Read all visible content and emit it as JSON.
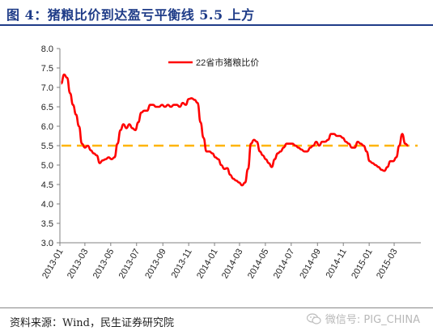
{
  "header": {
    "title": "图 4：猪粮比价到达盈亏平衡线 5.5 上方"
  },
  "footer": {
    "source": "资料来源：Wind，民生证券研究院"
  },
  "watermark": {
    "text": "微信号: PIG_CHINA",
    "icon": "wechat-icon"
  },
  "colors": {
    "series": "#ff0000",
    "threshold": "#ffb400",
    "title": "#1f3c88"
  },
  "chart_data": {
    "type": "line",
    "title": "",
    "xlabel": "",
    "ylabel": "",
    "ylim": [
      3.0,
      8.0
    ],
    "yticks": [
      "3.0",
      "3.5",
      "4.0",
      "4.5",
      "5.0",
      "5.5",
      "6.0",
      "6.5",
      "7.0",
      "7.5",
      "8.0"
    ],
    "xticks": [
      "2013-01",
      "2013-03",
      "2013-05",
      "2013-07",
      "2013-09",
      "2013-11",
      "2014-01",
      "2014-03",
      "2014-05",
      "2014-07",
      "2014-09",
      "2014-11",
      "2015-01",
      "2015-03"
    ],
    "grid": false,
    "legend": "top-left",
    "series": [
      {
        "name": "22省市猪粮比价",
        "x": [
          "2013-01-04",
          "2013-01-11",
          "2013-01-18",
          "2013-01-25",
          "2013-02-01",
          "2013-02-08",
          "2013-02-15",
          "2013-02-22",
          "2013-03-01",
          "2013-03-08",
          "2013-03-15",
          "2013-03-22",
          "2013-03-29",
          "2013-04-05",
          "2013-04-12",
          "2013-04-19",
          "2013-04-26",
          "2013-05-03",
          "2013-05-10",
          "2013-05-17",
          "2013-05-24",
          "2013-05-31",
          "2013-06-07",
          "2013-06-14",
          "2013-06-21",
          "2013-06-28",
          "2013-07-05",
          "2013-07-12",
          "2013-07-19",
          "2013-07-26",
          "2013-08-02",
          "2013-08-09",
          "2013-08-16",
          "2013-08-23",
          "2013-08-30",
          "2013-09-06",
          "2013-09-13",
          "2013-09-20",
          "2013-09-27",
          "2013-10-04",
          "2013-10-11",
          "2013-10-18",
          "2013-10-25",
          "2013-11-01",
          "2013-11-08",
          "2013-11-15",
          "2013-11-22",
          "2013-11-29",
          "2013-12-06",
          "2013-12-13",
          "2013-12-20",
          "2013-12-27",
          "2014-01-03",
          "2014-01-10",
          "2014-01-17",
          "2014-01-24",
          "2014-01-31",
          "2014-02-07",
          "2014-02-14",
          "2014-02-21",
          "2014-02-28",
          "2014-03-07",
          "2014-03-14",
          "2014-03-21",
          "2014-03-28",
          "2014-04-04",
          "2014-04-11",
          "2014-04-18",
          "2014-04-25",
          "2014-05-02",
          "2014-05-09",
          "2014-05-16",
          "2014-05-23",
          "2014-05-30",
          "2014-06-06",
          "2014-06-13",
          "2014-06-20",
          "2014-06-27",
          "2014-07-04",
          "2014-07-11",
          "2014-07-18",
          "2014-07-25",
          "2014-08-01",
          "2014-08-08",
          "2014-08-15",
          "2014-08-22",
          "2014-08-29",
          "2014-09-05",
          "2014-09-12",
          "2014-09-19",
          "2014-09-26",
          "2014-10-03",
          "2014-10-10",
          "2014-10-17",
          "2014-10-24",
          "2014-10-31",
          "2014-11-07",
          "2014-11-14",
          "2014-11-21",
          "2014-11-28",
          "2014-12-05",
          "2014-12-12",
          "2014-12-19",
          "2014-12-26",
          "2015-01-02",
          "2015-01-09",
          "2015-01-16",
          "2015-01-23",
          "2015-01-30",
          "2015-02-06",
          "2015-02-13",
          "2015-02-20",
          "2015-02-27",
          "2015-03-06",
          "2015-03-13",
          "2015-03-20",
          "2015-03-27",
          "2015-04-03"
        ],
        "values": [
          7.1,
          7.33,
          7.25,
          6.85,
          6.55,
          6.3,
          6.0,
          5.55,
          5.45,
          5.5,
          5.38,
          5.3,
          5.25,
          5.05,
          5.12,
          5.15,
          5.2,
          5.15,
          5.2,
          5.55,
          5.9,
          6.05,
          5.95,
          6.05,
          5.95,
          5.9,
          6.1,
          6.35,
          6.4,
          6.4,
          6.55,
          6.55,
          6.5,
          6.5,
          6.55,
          6.5,
          6.55,
          6.5,
          6.55,
          6.55,
          6.5,
          6.6,
          6.55,
          6.7,
          6.72,
          6.68,
          6.6,
          6.1,
          5.7,
          5.35,
          5.35,
          5.3,
          5.2,
          5.15,
          5.0,
          4.9,
          4.92,
          4.75,
          4.65,
          4.6,
          4.55,
          4.48,
          4.55,
          4.9,
          5.55,
          5.65,
          5.6,
          5.35,
          5.25,
          5.15,
          5.05,
          4.95,
          5.15,
          5.3,
          5.35,
          5.45,
          5.55,
          5.55,
          5.55,
          5.5,
          5.45,
          5.4,
          5.35,
          5.35,
          5.45,
          5.5,
          5.6,
          5.5,
          5.6,
          5.6,
          5.65,
          5.8,
          5.8,
          5.75,
          5.75,
          5.7,
          5.6,
          5.55,
          5.45,
          5.45,
          5.6,
          5.55,
          5.5,
          5.35,
          5.1,
          5.05,
          5.0,
          4.95,
          4.88,
          4.85,
          4.95,
          5.1,
          5.1,
          5.2,
          5.5,
          5.8,
          5.55,
          5.5
        ]
      }
    ],
    "reference_line": {
      "value": 5.5,
      "style": "dashed"
    }
  }
}
